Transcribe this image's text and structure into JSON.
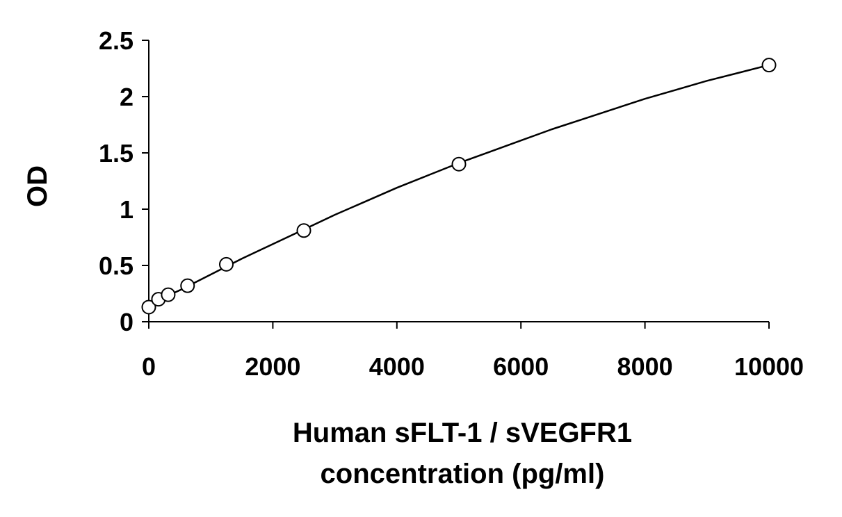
{
  "chart_data": {
    "type": "scatter",
    "title": "",
    "xlabel_lines": [
      "Human sFLT-1 / sVEGFR1",
      "concentration (pg/ml)"
    ],
    "ylabel": "OD",
    "xlim": [
      0,
      10000
    ],
    "ylim": [
      0,
      2.5
    ],
    "x_ticks": [
      0,
      2000,
      4000,
      6000,
      8000,
      10000
    ],
    "x_tick_labels": [
      "0",
      "2000",
      "4000",
      "6000",
      "8000",
      "10000"
    ],
    "y_ticks": [
      0,
      0.5,
      1,
      1.5,
      2,
      2.5
    ],
    "y_tick_labels": [
      "0",
      "0.5",
      "1",
      "1.5",
      "2",
      "2.5"
    ],
    "grid": false,
    "legend": "none",
    "series": [
      {
        "marker": "open-circle",
        "x": [
          0,
          156,
          313,
          625,
          1250,
          2500,
          5000,
          10000
        ],
        "y": [
          0.13,
          0.2,
          0.24,
          0.32,
          0.51,
          0.81,
          1.4,
          2.28
        ]
      }
    ],
    "fit_curve": {
      "style": "solid",
      "x": [
        0,
        500,
        1000,
        1500,
        2000,
        2500,
        3000,
        3500,
        4000,
        4500,
        5000,
        5500,
        6000,
        6500,
        7000,
        7500,
        8000,
        8500,
        9000,
        9500,
        10000
      ],
      "y": [
        0.15,
        0.28,
        0.42,
        0.56,
        0.69,
        0.82,
        0.95,
        1.07,
        1.19,
        1.3,
        1.41,
        1.51,
        1.61,
        1.71,
        1.8,
        1.89,
        1.98,
        2.06,
        2.14,
        2.21,
        2.28
      ]
    },
    "colors": {
      "axis": "#000000",
      "marker_stroke": "#000000",
      "marker_fill": "#ffffff",
      "curve": "#000000"
    }
  }
}
